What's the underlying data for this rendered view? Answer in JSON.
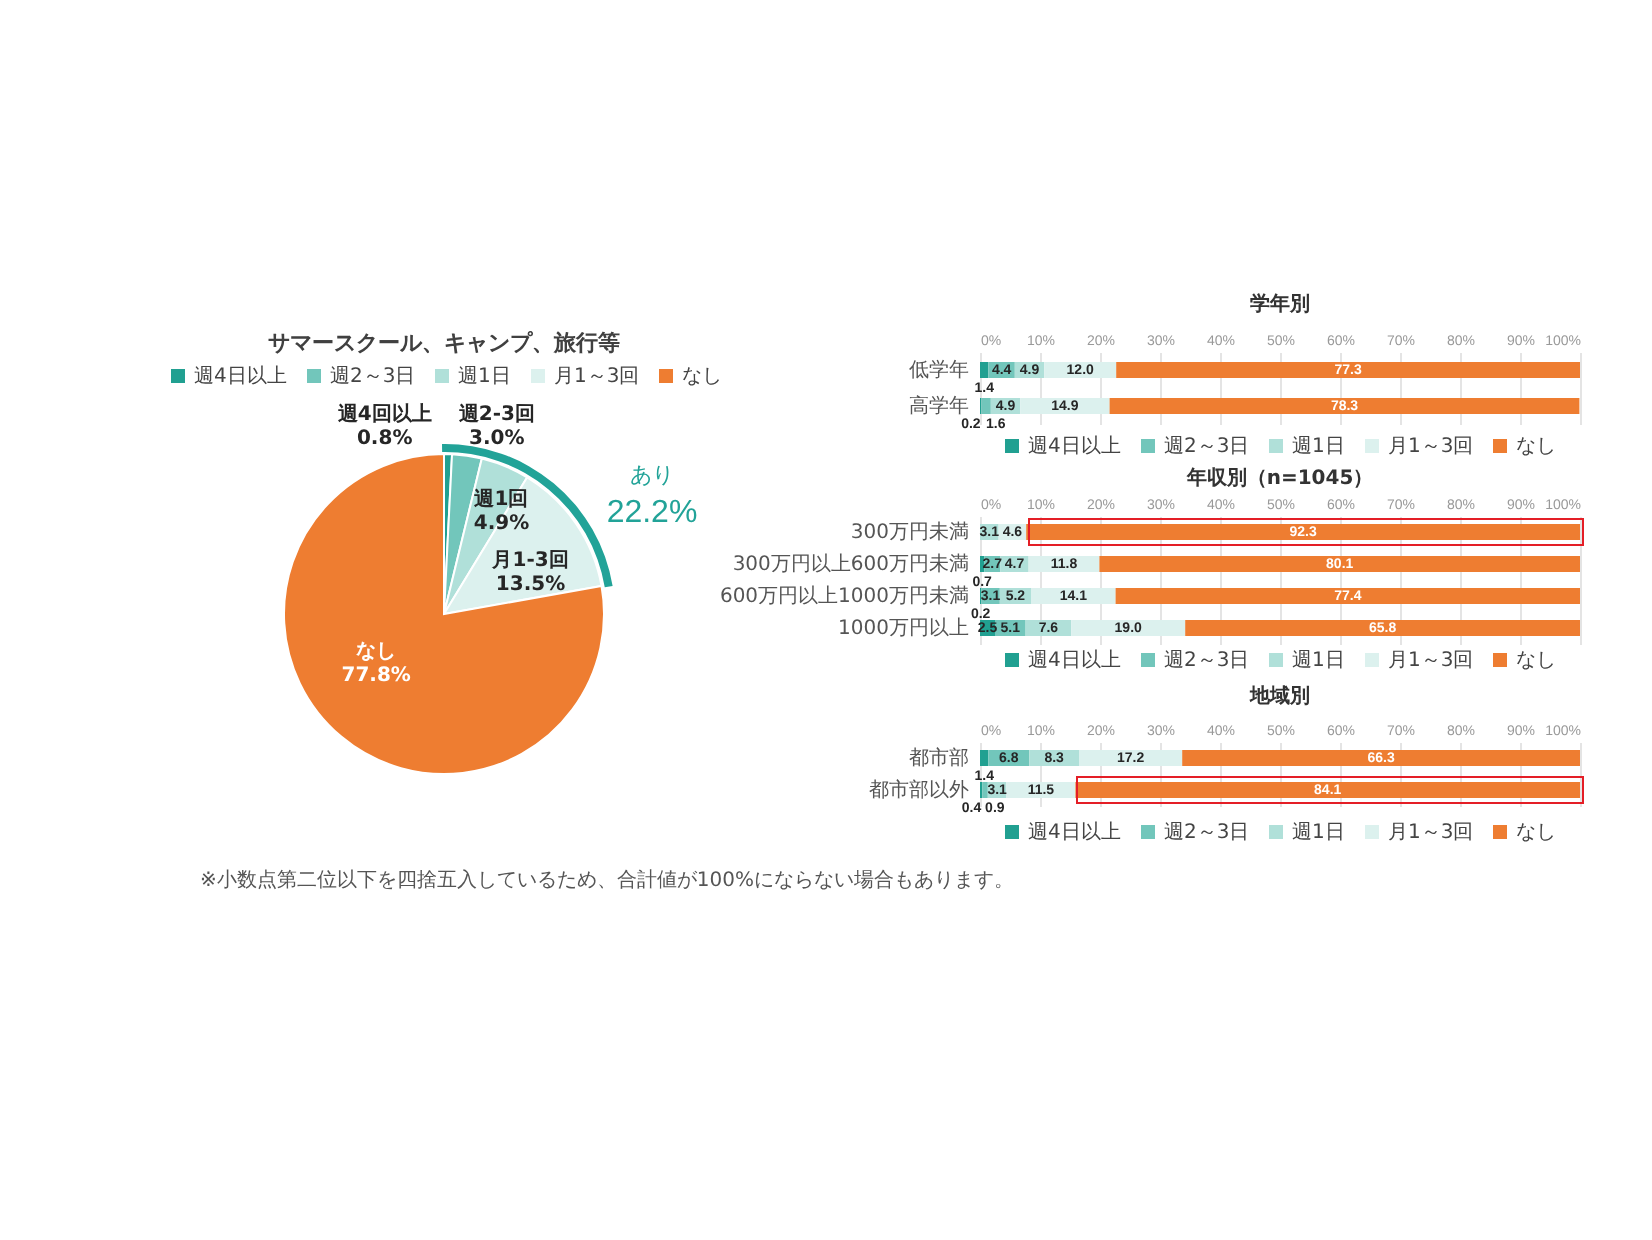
{
  "chart_data": [
    {
      "type": "pie",
      "title": "サマースクール、キャンプ、旅行等",
      "categories": [
        "週4日以上",
        "週2～3日",
        "週1日",
        "月1～3回",
        "なし"
      ],
      "values": [
        0.8,
        3.0,
        4.9,
        13.5,
        77.8
      ],
      "colors": [
        "#21a091",
        "#72c6bb",
        "#b0e0d9",
        "#dcf1ee",
        "#ee7d31"
      ],
      "value_labels": [
        "週4回以上\n0.8%",
        "週2-3回\n3.0%",
        "週1回\n4.9%",
        "月1-3回\n13.5%",
        "なし\n77.8%"
      ],
      "legend": "top",
      "annotations": [
        "あり",
        "22.2%",
        "※小数点第二位以下を四捨五入しているため、合計値が100%にならない場合もあります。"
      ]
    },
    {
      "type": "bar",
      "orientation": "horizontal",
      "stacked": true,
      "title": "学年別",
      "categories": [
        "低学年",
        "高学年"
      ],
      "series": [
        {
          "name": "週4日以上",
          "color": "#21a091",
          "values": [
            1.4,
            0.2
          ],
          "value_labels": [
            "1.4",
            "0.2"
          ]
        },
        {
          "name": "週2～3日",
          "color": "#72c6bb",
          "values": [
            4.4,
            1.6
          ],
          "value_labels": [
            "4.4",
            "1.6"
          ]
        },
        {
          "name": "週1日",
          "color": "#b0e0d9",
          "values": [
            4.9,
            4.9
          ],
          "value_labels": [
            "4.9",
            "4.9"
          ]
        },
        {
          "name": "月1～3回",
          "color": "#dcf1ee",
          "values": [
            12.0,
            14.9
          ],
          "value_labels": [
            "12.0",
            "14.9"
          ]
        },
        {
          "name": "なし",
          "color": "#ee7d31",
          "values": [
            77.3,
            78.3
          ],
          "value_labels": [
            "77.3",
            "78.3"
          ]
        }
      ],
      "xlim": [
        0,
        100
      ],
      "xticks": [
        {
          "value": 0,
          "label": "0%"
        },
        {
          "value": 10,
          "label": "10%"
        },
        {
          "value": 20,
          "label": "20%"
        },
        {
          "value": 30,
          "label": "30%"
        },
        {
          "value": 40,
          "label": "40%"
        },
        {
          "value": 50,
          "label": "50%"
        },
        {
          "value": 60,
          "label": "60%"
        },
        {
          "value": 70,
          "label": "70%"
        },
        {
          "value": 80,
          "label": "80%"
        },
        {
          "value": 90,
          "label": "90%"
        },
        {
          "value": 100,
          "label": "100%"
        }
      ],
      "grid": "x",
      "legend": "bottom"
    },
    {
      "type": "bar",
      "orientation": "horizontal",
      "stacked": true,
      "title": "年収別（n=1045）",
      "categories": [
        "300万円未満",
        "300万円以上600万円未満",
        "600万円以上1000万円未満",
        "1000万円以上"
      ],
      "series": [
        {
          "name": "週4日以上",
          "color": "#21a091",
          "values": [
            null,
            0.7,
            0.2,
            2.5
          ],
          "value_labels": [
            null,
            "0.7",
            "0.2",
            "2.5"
          ]
        },
        {
          "name": "週2～3日",
          "color": "#72c6bb",
          "values": [
            null,
            2.7,
            3.1,
            5.1
          ],
          "value_labels": [
            null,
            "2.7",
            "3.1",
            "5.1"
          ]
        },
        {
          "name": "週1日",
          "color": "#b0e0d9",
          "values": [
            3.1,
            4.7,
            5.2,
            7.6
          ],
          "value_labels": [
            "3.1",
            "4.7",
            "5.2",
            "7.6"
          ]
        },
        {
          "name": "月1～3回",
          "color": "#dcf1ee",
          "values": [
            4.6,
            11.8,
            14.1,
            19.0
          ],
          "value_labels": [
            "4.6",
            "11.8",
            "14.1",
            "19.0"
          ]
        },
        {
          "name": "なし",
          "color": "#ee7d31",
          "values": [
            92.3,
            80.1,
            77.4,
            65.8
          ],
          "value_labels": [
            "92.3",
            "80.1",
            "77.4",
            "65.8"
          ]
        }
      ],
      "xlim": [
        0,
        100
      ],
      "xticks": [
        {
          "value": 0,
          "label": "0%"
        },
        {
          "value": 10,
          "label": "10%"
        },
        {
          "value": 20,
          "label": "20%"
        },
        {
          "value": 30,
          "label": "30%"
        },
        {
          "value": 40,
          "label": "40%"
        },
        {
          "value": 50,
          "label": "50%"
        },
        {
          "value": 60,
          "label": "60%"
        },
        {
          "value": 70,
          "label": "70%"
        },
        {
          "value": 80,
          "label": "80%"
        },
        {
          "value": 90,
          "label": "90%"
        },
        {
          "value": 100,
          "label": "100%"
        }
      ],
      "grid": "x",
      "legend": "bottom"
    },
    {
      "type": "bar",
      "orientation": "horizontal",
      "stacked": true,
      "title": "地域別",
      "categories": [
        "都市部",
        "都市部以外"
      ],
      "series": [
        {
          "name": "週4日以上",
          "color": "#21a091",
          "values": [
            1.4,
            0.4
          ],
          "value_labels": [
            "1.4",
            "0.4"
          ]
        },
        {
          "name": "週2～3日",
          "color": "#72c6bb",
          "values": [
            6.8,
            0.9
          ],
          "value_labels": [
            "6.8",
            "0.9"
          ]
        },
        {
          "name": "週1日",
          "color": "#b0e0d9",
          "values": [
            8.3,
            3.1
          ],
          "value_labels": [
            "8.3",
            "3.1"
          ]
        },
        {
          "name": "月1～3回",
          "color": "#dcf1ee",
          "values": [
            17.2,
            11.5
          ],
          "value_labels": [
            "17.2",
            "11.5"
          ]
        },
        {
          "name": "なし",
          "color": "#ee7d31",
          "values": [
            66.3,
            84.1
          ],
          "value_labels": [
            "66.3",
            "84.1"
          ]
        }
      ],
      "xlim": [
        0,
        100
      ],
      "xticks": [
        {
          "value": 0,
          "label": "0%"
        },
        {
          "value": 10,
          "label": "10%"
        },
        {
          "value": 20,
          "label": "20%"
        },
        {
          "value": 30,
          "label": "30%"
        },
        {
          "value": 40,
          "label": "40%"
        },
        {
          "value": 50,
          "label": "50%"
        },
        {
          "value": 60,
          "label": "60%"
        },
        {
          "value": 70,
          "label": "70%"
        },
        {
          "value": 80,
          "label": "80%"
        },
        {
          "value": 90,
          "label": "90%"
        },
        {
          "value": 100,
          "label": "100%"
        }
      ],
      "grid": "x",
      "legend": "bottom"
    }
  ]
}
